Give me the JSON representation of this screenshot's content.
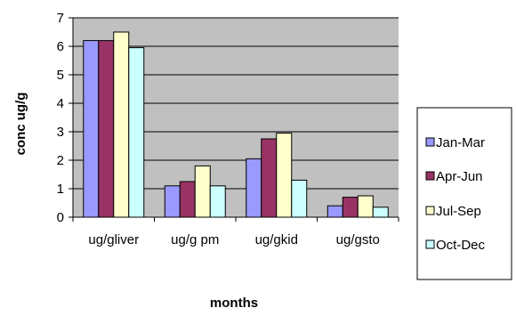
{
  "chart_data": {
    "type": "bar",
    "title": "",
    "xlabel": "months",
    "ylabel": "conc ug/g",
    "ylim": [
      0,
      7
    ],
    "yticks": [
      "0",
      "1",
      "2",
      "3",
      "4",
      "5",
      "6",
      "7"
    ],
    "categories": [
      "ug/gliver",
      "ug/g pm",
      "ug/gkid",
      "ug/gsto"
    ],
    "series": [
      {
        "name": "Jan-Mar",
        "color": "#9999ff",
        "values": [
          6.2,
          1.1,
          2.05,
          0.4
        ]
      },
      {
        "name": "Apr-Jun",
        "color": "#993366",
        "values": [
          6.2,
          1.25,
          2.75,
          0.7
        ]
      },
      {
        "name": "Jul-Sep",
        "color": "#ffffcc",
        "values": [
          6.5,
          1.8,
          2.95,
          0.75
        ]
      },
      {
        "name": "Oct-Dec",
        "color": "#ccffff",
        "values": [
          5.95,
          1.1,
          1.3,
          0.35
        ]
      }
    ],
    "grid": true,
    "plot_background": "#c0c0c0",
    "legend_position": "right"
  }
}
